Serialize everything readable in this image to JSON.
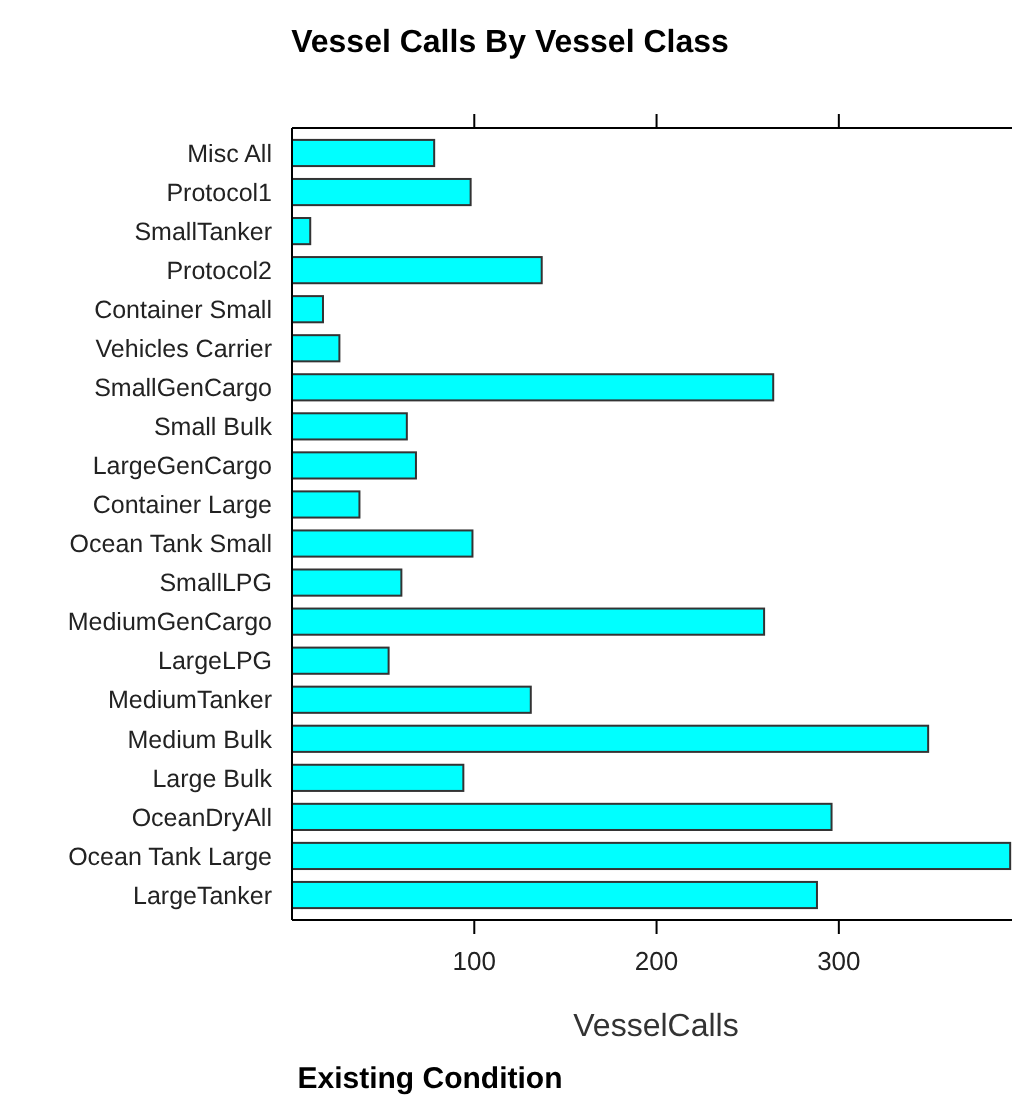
{
  "chart_data": {
    "type": "bar",
    "orientation": "horizontal",
    "title": "Vessel Calls By Vessel Class",
    "xlabel": "VesselCalls",
    "annotations": [
      "Existing Condition"
    ],
    "categories": [
      "Misc All",
      "Protocol1",
      "SmallTanker",
      "Protocol2",
      "Container Small",
      "Vehicles Carrier",
      "SmallGenCargo",
      "Small Bulk",
      "LargeGenCargo",
      "Container Large",
      "Ocean Tank Small",
      "SmallLPG",
      "MediumGenCargo",
      "LargeLPG",
      "MediumTanker",
      "Medium Bulk",
      "Large Bulk",
      "OceanDryAll",
      "Ocean Tank Large",
      "LargeTanker"
    ],
    "values": [
      78,
      98,
      10,
      137,
      17,
      26,
      264,
      63,
      68,
      37,
      99,
      60,
      259,
      53,
      131,
      349,
      94,
      296,
      394,
      288
    ],
    "color": "#00ffff",
    "xlim": [
      0,
      395
    ],
    "xticks": [
      100,
      200,
      300
    ],
    "grid": false
  }
}
